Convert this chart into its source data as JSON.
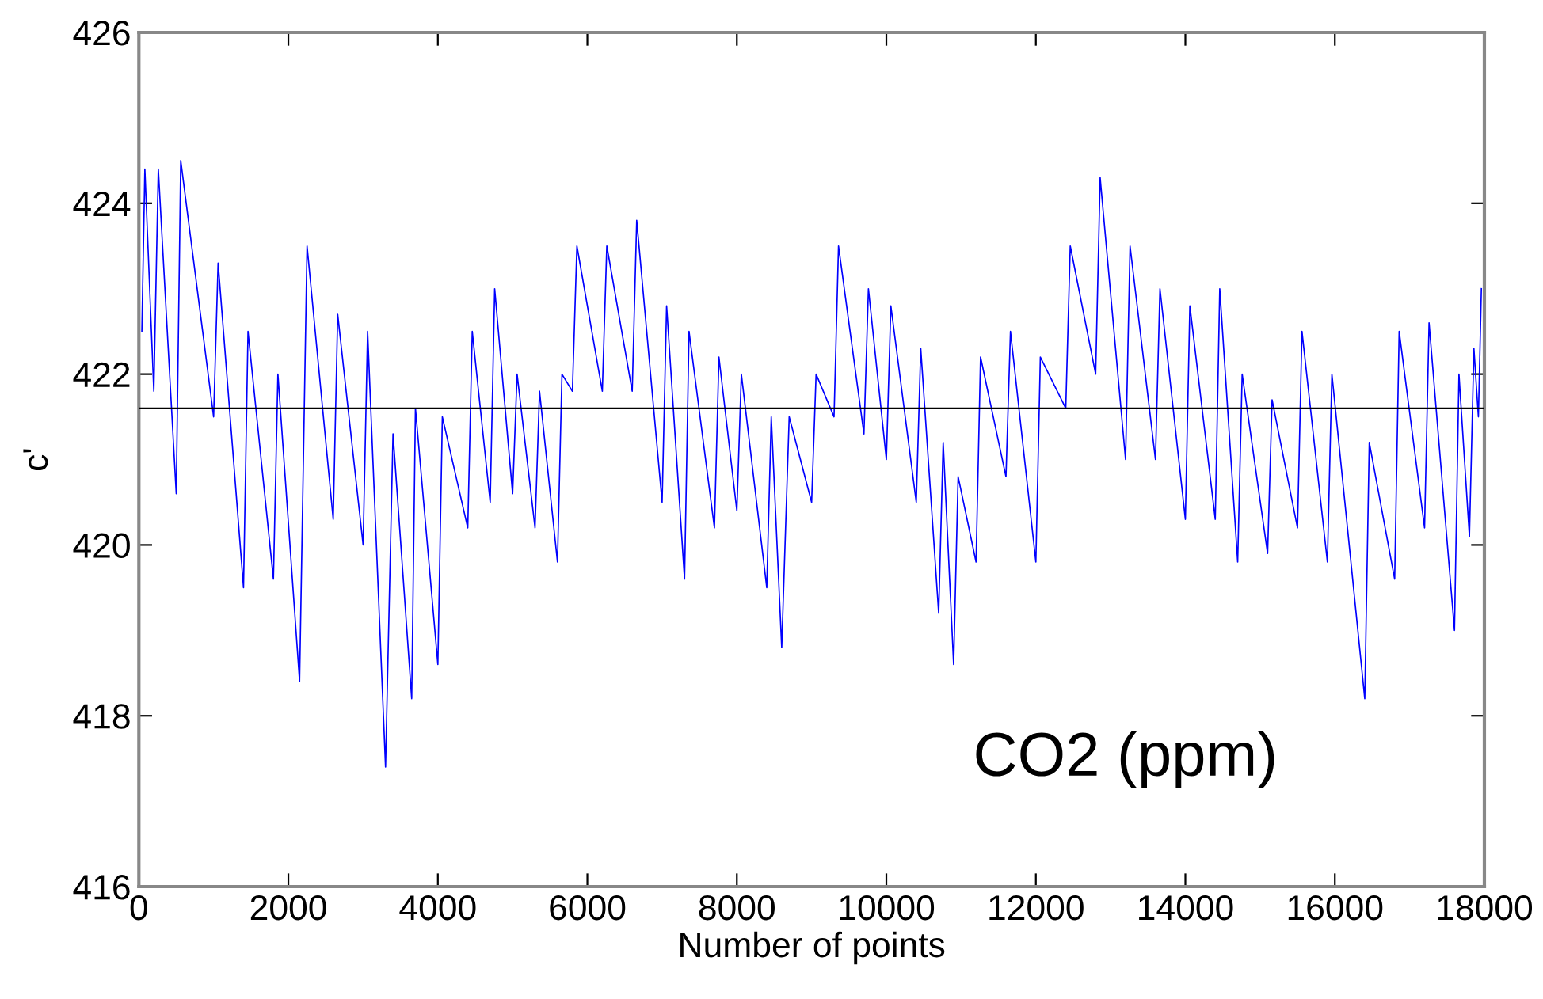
{
  "chart_data": {
    "type": "line",
    "xlabel": "Number of points",
    "ylabel": "c'",
    "series": [
      {
        "color": "#0000ff",
        "x": [
          40,
          80,
          200,
          260,
          500,
          560,
          1000,
          1060,
          1400,
          1460,
          1800,
          1860,
          2150,
          2250,
          2600,
          2660,
          3000,
          3060,
          3300,
          3400,
          3650,
          3700,
          4000,
          4060,
          4400,
          4460,
          4700,
          4760,
          5000,
          5060,
          5300,
          5360,
          5600,
          5660,
          5800,
          5860,
          6200,
          6260,
          6600,
          6660,
          7000,
          7060,
          7300,
          7360,
          7700,
          7760,
          8000,
          8060,
          8400,
          8460,
          8600,
          8700,
          9000,
          9060,
          9300,
          9360,
          9700,
          9760,
          10000,
          10060,
          10400,
          10460,
          10700,
          10760,
          10900,
          10960,
          11200,
          11260,
          11600,
          11660,
          12000,
          12060,
          12400,
          12460,
          12800,
          12860,
          13200,
          13260,
          13600,
          13660,
          14000,
          14060,
          14400,
          14460,
          14700,
          14760,
          15100,
          15160,
          15500,
          15560,
          15900,
          15960,
          16400,
          16460,
          16800,
          16860,
          17200,
          17260,
          17600,
          17660,
          17800,
          17860,
          17920,
          17960
        ],
        "values": [
          422.5,
          424.4,
          421.8,
          424.4,
          420.6,
          424.5,
          421.5,
          423.3,
          419.5,
          422.5,
          419.6,
          422,
          418.4,
          423.5,
          420.3,
          422.7,
          420,
          422.5,
          417.4,
          421.3,
          418.2,
          421.6,
          418.6,
          421.5,
          420.2,
          422.5,
          420.5,
          423,
          420.6,
          422,
          420.2,
          421.8,
          419.8,
          422,
          421.8,
          423.5,
          421.8,
          423.5,
          421.8,
          423.8,
          420.5,
          422.8,
          419.6,
          422.5,
          420.2,
          422.2,
          420.4,
          422,
          419.5,
          421.5,
          418.8,
          421.5,
          420.5,
          422,
          421.5,
          423.5,
          421.3,
          423,
          421,
          422.8,
          420.5,
          422.3,
          419.2,
          421.2,
          418.6,
          420.8,
          419.8,
          422.2,
          420.8,
          422.5,
          419.8,
          422.2,
          421.6,
          423.5,
          422,
          424.3,
          421,
          423.5,
          421,
          423,
          420.3,
          422.8,
          420.3,
          423,
          419.8,
          422,
          419.9,
          421.7,
          420.2,
          422.5,
          419.8,
          422,
          418.2,
          421.2,
          419.6,
          422.5,
          420.2,
          422.6,
          419,
          422,
          420.1,
          422.3,
          421.5,
          423
        ]
      }
    ],
    "ref_lines": [
      {
        "axis": "y",
        "value": 421.6,
        "color": "#000000"
      }
    ],
    "annotations": [
      "CO2 (ppm)"
    ],
    "xlim": [
      0,
      18000
    ],
    "xticks": [
      0,
      2000,
      4000,
      6000,
      8000,
      10000,
      12000,
      14000,
      16000,
      18000
    ],
    "ylim": [
      416,
      426
    ],
    "yticks": [
      416,
      418,
      420,
      422,
      424,
      426
    ],
    "grid": false,
    "legend": false
  }
}
